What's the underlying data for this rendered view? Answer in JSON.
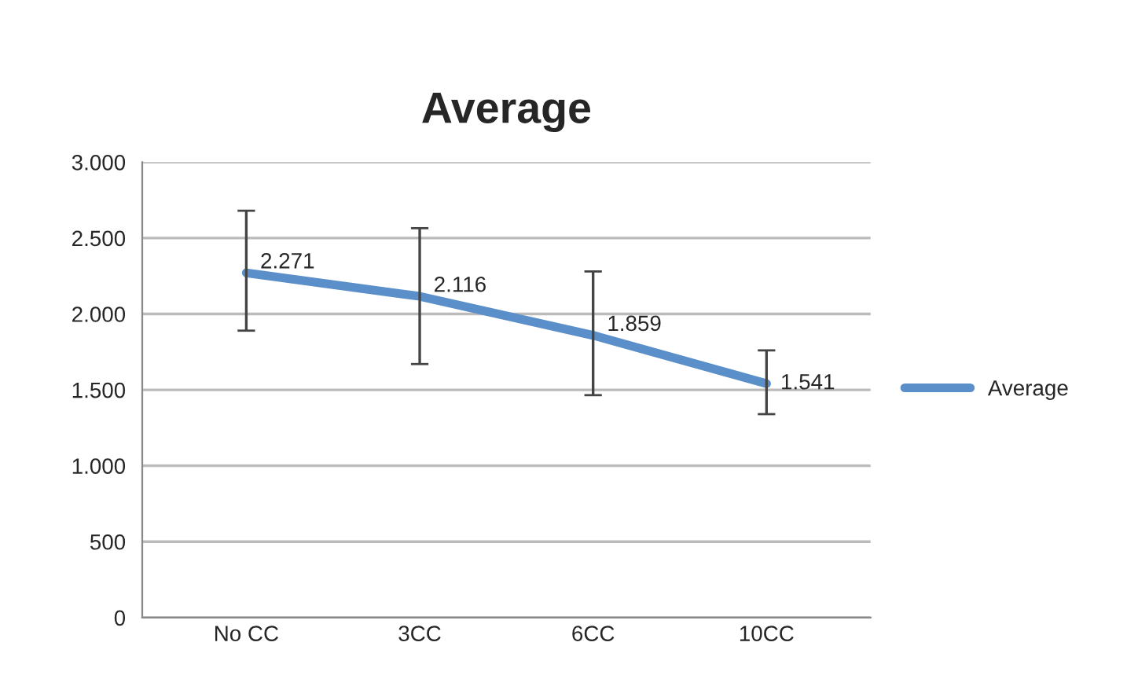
{
  "chart_data": {
    "type": "line",
    "title": "Average",
    "categories": [
      "No CC",
      "3CC",
      "6CC",
      "10CC"
    ],
    "series": [
      {
        "name": "Average",
        "color": "#5b8fc9",
        "values": [
          2271,
          2116,
          1859,
          1541
        ],
        "value_labels": [
          "2.271",
          "2.116",
          "1.859",
          "1.541"
        ],
        "errors": [
          [
            1890,
            2680
          ],
          [
            1670,
            2565
          ],
          [
            1465,
            2280
          ],
          [
            1340,
            1760
          ]
        ]
      }
    ],
    "ylim": [
      0,
      3000
    ],
    "yticks": [
      0,
      500,
      {
        "value": 1000,
        "label": "1.000"
      },
      {
        "value": 1500,
        "label": "1.500"
      },
      {
        "value": 2000,
        "label": "2.000"
      },
      {
        "value": 2500,
        "label": "2.500"
      },
      {
        "value": 3000,
        "label": "3.000"
      }
    ],
    "grid": "y",
    "legend": "right",
    "marker": "none",
    "line_style": "solid"
  }
}
